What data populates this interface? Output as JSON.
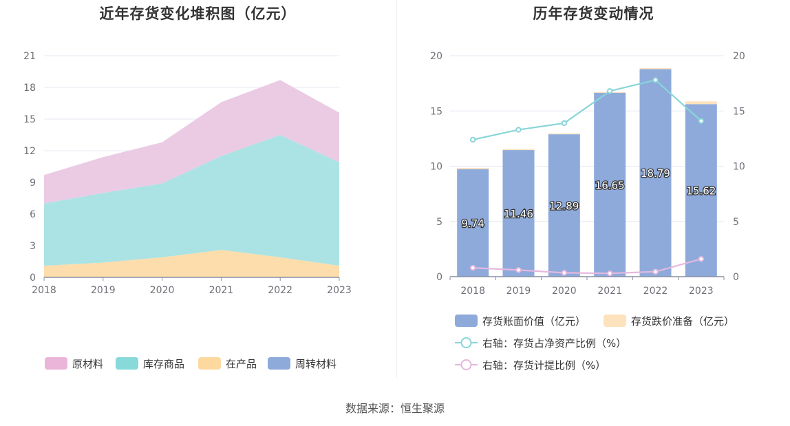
{
  "source_text": "数据来源：恒生聚源",
  "chart_data": [
    {
      "type": "area",
      "stacked": true,
      "title": "近年存货变化堆积图（亿元）",
      "x": [
        "2018",
        "2019",
        "2020",
        "2021",
        "2022",
        "2023"
      ],
      "ylim": [
        0,
        21
      ],
      "yticks": [
        0,
        3,
        6,
        9,
        12,
        15,
        18,
        21
      ],
      "grid": true,
      "legend_position": "bottom",
      "series": [
        {
          "name": "周转材料",
          "color": "#8eaadb",
          "values": [
            0,
            0,
            0,
            0,
            0,
            0
          ]
        },
        {
          "name": "在产品",
          "color": "#fdddab",
          "values": [
            1.1,
            1.4,
            1.9,
            2.6,
            1.9,
            1.1
          ]
        },
        {
          "name": "库存商品",
          "color": "#abe3e4",
          "values": [
            5.9,
            6.6,
            7.0,
            8.9,
            11.6,
            9.8
          ]
        },
        {
          "name": "原材料",
          "color": "#ebcbe4",
          "values": [
            2.7,
            3.4,
            3.9,
            5.1,
            5.2,
            4.7
          ]
        }
      ],
      "legend": [
        {
          "name": "原材料",
          "color": "#ebb5d9"
        },
        {
          "name": "库存商品",
          "color": "#88d9da"
        },
        {
          "name": "在产品",
          "color": "#fdd9a0"
        },
        {
          "name": "周转材料",
          "color": "#8eaadb"
        }
      ]
    },
    {
      "type": "bar",
      "title": "历年存货变动情况",
      "categories": [
        "2018",
        "2019",
        "2020",
        "2021",
        "2022",
        "2023"
      ],
      "ylim": [
        0,
        20
      ],
      "yticks": [
        0,
        5,
        10,
        15,
        20
      ],
      "y2lim": [
        0,
        20
      ],
      "y2ticks": [
        0,
        5,
        10,
        15,
        20
      ],
      "grid": true,
      "legend_position": "bottom",
      "bar_series": [
        {
          "name": "存货账面价值（亿元）",
          "color": "#8eaadb",
          "values": [
            9.74,
            11.46,
            12.89,
            16.65,
            18.79,
            15.62
          ],
          "labels": [
            "9.74",
            "11.46",
            "12.89",
            "16.65",
            "18.79",
            "15.62"
          ]
        },
        {
          "name": "存货跌价准备（亿元）",
          "color": "#fde3bd",
          "values": [
            0.1,
            0.1,
            0.08,
            0.07,
            0.09,
            0.25
          ]
        }
      ],
      "line_series": [
        {
          "name": "右轴：存货占净资产比例（%）",
          "color": "#88d5d8",
          "values": [
            12.4,
            13.3,
            13.9,
            16.8,
            17.8,
            14.1
          ]
        },
        {
          "name": "右轴：存货计提比例（%）",
          "color": "#e5b8de",
          "values": [
            0.8,
            0.6,
            0.35,
            0.3,
            0.45,
            1.6
          ]
        }
      ]
    }
  ]
}
